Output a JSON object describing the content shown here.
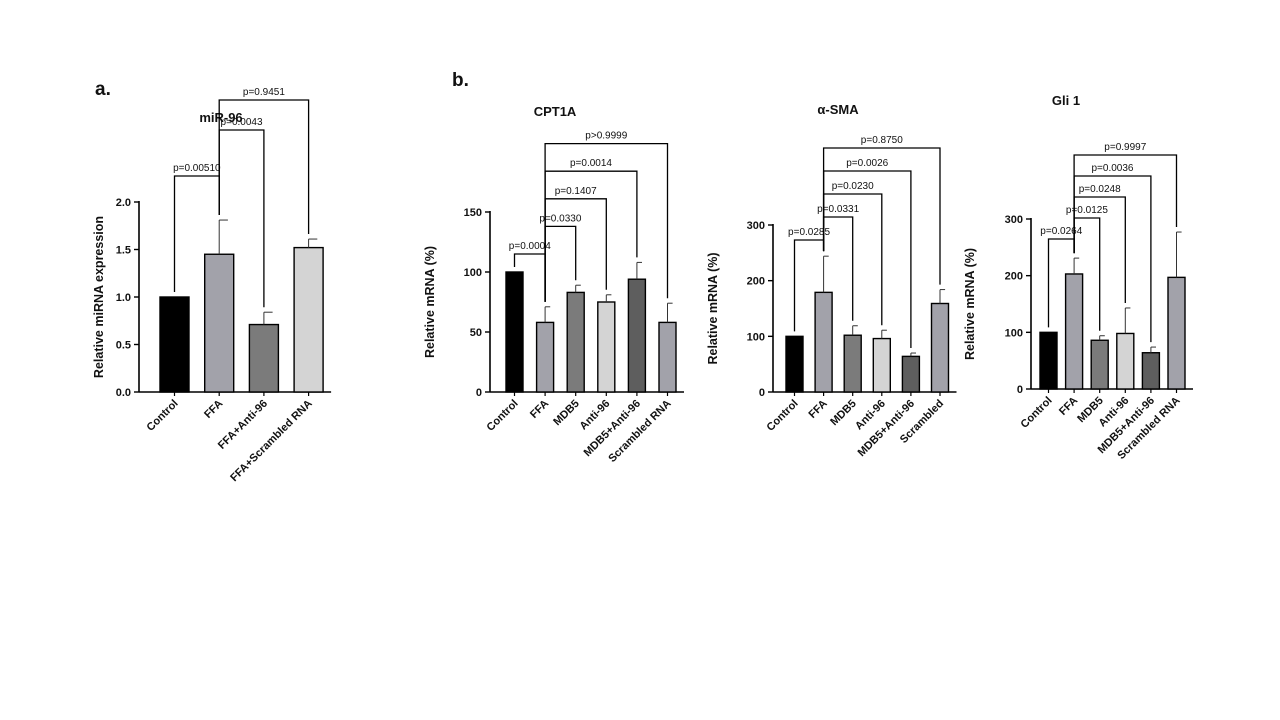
{
  "figure": {
    "panel_a": "a.",
    "panel_b": "b."
  },
  "chart_data": [
    {
      "type": "bar",
      "panel": "a.",
      "title": "miR-96",
      "ylabel": "Relative miRNA expression",
      "xlabel": "",
      "ylim": [
        0,
        2.0
      ],
      "yticks": [
        "0.0",
        "0.5",
        "1.0",
        "1.5",
        "2.0"
      ],
      "ytick_values": [
        0,
        0.5,
        1.0,
        1.5,
        2.0
      ],
      "categories": [
        "Control",
        "FFA",
        "FFA+Anti-96",
        "FFA+Scrambled RNA"
      ],
      "values": [
        1.0,
        1.45,
        0.71,
        1.52
      ],
      "errors": [
        0,
        0.36,
        0.13,
        0.09
      ],
      "colors": [
        "#000000",
        "#a2a2aa",
        "#7b7b7b",
        "#d4d4d4"
      ],
      "comparisons": [
        {
          "from": 0,
          "to": 1,
          "label": "p=0.00510"
        },
        {
          "from": 1,
          "to": 2,
          "label": "p=0.0043"
        },
        {
          "from": 1,
          "to": 3,
          "label": "p=0.9451"
        }
      ]
    },
    {
      "type": "bar",
      "panel": "b.",
      "title": "CPT1A",
      "ylabel": "Relative mRNA (%)",
      "xlabel": "",
      "ylim": [
        0,
        150
      ],
      "yticks": [
        "0",
        "50",
        "100",
        "150"
      ],
      "ytick_values": [
        0,
        50,
        100,
        150
      ],
      "categories": [
        "Control",
        "FFA",
        "MDB5",
        "Anti-96",
        "MDB5+Anti-96",
        "Scrambled RNA"
      ],
      "values": [
        100,
        58,
        83,
        75,
        94,
        58
      ],
      "errors": [
        0,
        13,
        6,
        6,
        14,
        16
      ],
      "colors": [
        "#000000",
        "#a2a2aa",
        "#7b7b7b",
        "#d4d4d4",
        "#5e5e5e",
        "#a2a2aa"
      ],
      "comparisons": [
        {
          "from": 0,
          "to": 1,
          "label": "p=0.0004"
        },
        {
          "from": 1,
          "to": 2,
          "label": "p=0.0330"
        },
        {
          "from": 1,
          "to": 3,
          "label": "p=0.1407"
        },
        {
          "from": 1,
          "to": 4,
          "label": "p=0.0014"
        },
        {
          "from": 1,
          "to": 5,
          "label": "p>0.9999"
        }
      ]
    },
    {
      "type": "bar",
      "panel": "",
      "title": "α-SMA",
      "ylabel": "Relative mRNA (%)",
      "xlabel": "",
      "ylim": [
        0,
        300
      ],
      "yticks": [
        "0",
        "100",
        "200",
        "300"
      ],
      "ytick_values": [
        0,
        100,
        200,
        300
      ],
      "categories": [
        "Control",
        "FFA",
        "MDB5",
        "Anti-96",
        "MDB5+Anti-96",
        "Scrambled"
      ],
      "values": [
        100,
        179,
        102,
        96,
        64,
        159
      ],
      "errors": [
        0,
        65,
        17,
        15,
        6,
        25
      ],
      "colors": [
        "#000000",
        "#a2a2aa",
        "#7b7b7b",
        "#d4d4d4",
        "#5e5e5e",
        "#a2a2aa"
      ],
      "comparisons": [
        {
          "from": 0,
          "to": 1,
          "label": "p=0.0285"
        },
        {
          "from": 1,
          "to": 2,
          "label": "p=0.0331"
        },
        {
          "from": 1,
          "to": 3,
          "label": "p=0.0230"
        },
        {
          "from": 1,
          "to": 4,
          "label": "p=0.0026"
        },
        {
          "from": 1,
          "to": 5,
          "label": "p=0.8750"
        }
      ]
    },
    {
      "type": "bar",
      "panel": "",
      "title": "Gli 1",
      "ylabel": "Relative mRNA (%)",
      "xlabel": "",
      "ylim": [
        0,
        300
      ],
      "yticks": [
        "0",
        "100",
        "200",
        "300"
      ],
      "ytick_values": [
        0,
        100,
        200,
        300
      ],
      "categories": [
        "Control",
        "FFA",
        "MDB5",
        "Anti-96",
        "MDB5+Anti-96",
        "Scrambled RNA"
      ],
      "values": [
        100,
        203,
        86,
        98,
        64,
        197
      ],
      "errors": [
        0,
        28,
        8,
        45,
        10,
        80
      ],
      "colors": [
        "#000000",
        "#a2a2aa",
        "#7b7b7b",
        "#d4d4d4",
        "#5e5e5e",
        "#a2a2aa"
      ],
      "comparisons": [
        {
          "from": 0,
          "to": 1,
          "label": "p=0.0264"
        },
        {
          "from": 1,
          "to": 2,
          "label": "p=0.0125"
        },
        {
          "from": 1,
          "to": 3,
          "label": "p=0.0248"
        },
        {
          "from": 1,
          "to": 4,
          "label": "p=0.0036"
        },
        {
          "from": 1,
          "to": 5,
          "label": "p=0.9997"
        }
      ]
    }
  ]
}
